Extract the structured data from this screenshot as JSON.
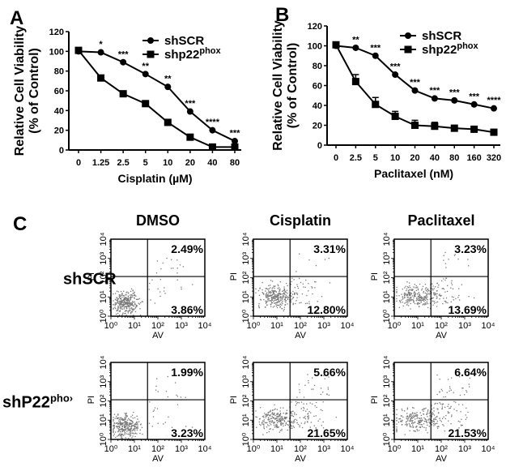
{
  "chart_data": [
    {
      "panel": "A",
      "type": "line",
      "xlabel": "Cisplatin (µM)",
      "ylabel": "Relative Cell Viability",
      "ylabel2": "(% of Control)",
      "categories": [
        "0",
        "1.25",
        "2.5",
        "5",
        "10",
        "20",
        "40",
        "80"
      ],
      "yticks": [
        "0",
        "20",
        "40",
        "60",
        "80",
        "100",
        "120"
      ],
      "ylim": [
        0,
        120
      ],
      "series": [
        {
          "name": "shSCR",
          "sup": "",
          "marker": "circle",
          "values": [
            100,
            99,
            89,
            77,
            64,
            39,
            20,
            9
          ],
          "errors": [
            2,
            1,
            1,
            2,
            2,
            1,
            1,
            1
          ]
        },
        {
          "name": "shp22",
          "sup": "phox",
          "marker": "square",
          "values": [
            101,
            73,
            57,
            47,
            28,
            13,
            3,
            3
          ],
          "errors": [
            2,
            2,
            1,
            1,
            1,
            1,
            1,
            1
          ]
        }
      ],
      "significance": [
        "",
        "*",
        "***",
        "**",
        "**",
        "***",
        "****",
        "***"
      ],
      "legend": "top-right"
    },
    {
      "panel": "B",
      "type": "line",
      "xlabel": "Paclitaxel (nM)",
      "ylabel": "Relative Cell Viability",
      "ylabel2": "(% of Control)",
      "categories": [
        "0",
        "2.5",
        "5",
        "10",
        "20",
        "40",
        "80",
        "160",
        "320"
      ],
      "yticks": [
        "0",
        "20",
        "40",
        "60",
        "80",
        "100",
        "120"
      ],
      "ylim": [
        0,
        120
      ],
      "series": [
        {
          "name": "shSCR",
          "sup": "",
          "marker": "circle",
          "values": [
            100,
            98,
            90,
            71,
            55,
            47,
            45,
            41,
            37
          ],
          "errors": [
            2,
            2,
            2,
            2,
            2,
            2,
            2,
            1,
            1
          ]
        },
        {
          "name": "shp22",
          "sup": "phox",
          "marker": "square",
          "values": [
            101,
            64,
            41,
            29,
            20,
            19,
            17,
            16,
            13
          ],
          "errors": [
            2,
            7,
            7,
            5,
            5,
            4,
            3,
            2,
            1
          ]
        }
      ],
      "significance": [
        "",
        "**",
        "***",
        "***",
        "***",
        "***",
        "***",
        "***",
        "****"
      ],
      "legend": "top-right"
    },
    {
      "panel": "C",
      "type": "scatter",
      "xlabel": "AV",
      "ylabel": "PI",
      "ticks": [
        "10⁰",
        "10¹",
        "10²",
        "10³",
        "10⁴"
      ],
      "columns": [
        "DMSO",
        "Cisplatin",
        "Paclitaxel"
      ],
      "rows": [
        {
          "label": "shSCR",
          "sup": "",
          "plots": [
            {
              "upper_right": "2.49%",
              "lower_right": "3.86%"
            },
            {
              "upper_right": "3.31%",
              "lower_right": "12.80%"
            },
            {
              "upper_right": "3.23%",
              "lower_right": "13.69%"
            }
          ]
        },
        {
          "label": "shP22",
          "sup": "pho›",
          "plots": [
            {
              "upper_right": "1.99%",
              "lower_right": "3.23%"
            },
            {
              "upper_right": "5.66%",
              "lower_right": "21.65%"
            },
            {
              "upper_right": "6.64%",
              "lower_right": "21.53%"
            }
          ]
        }
      ]
    }
  ]
}
